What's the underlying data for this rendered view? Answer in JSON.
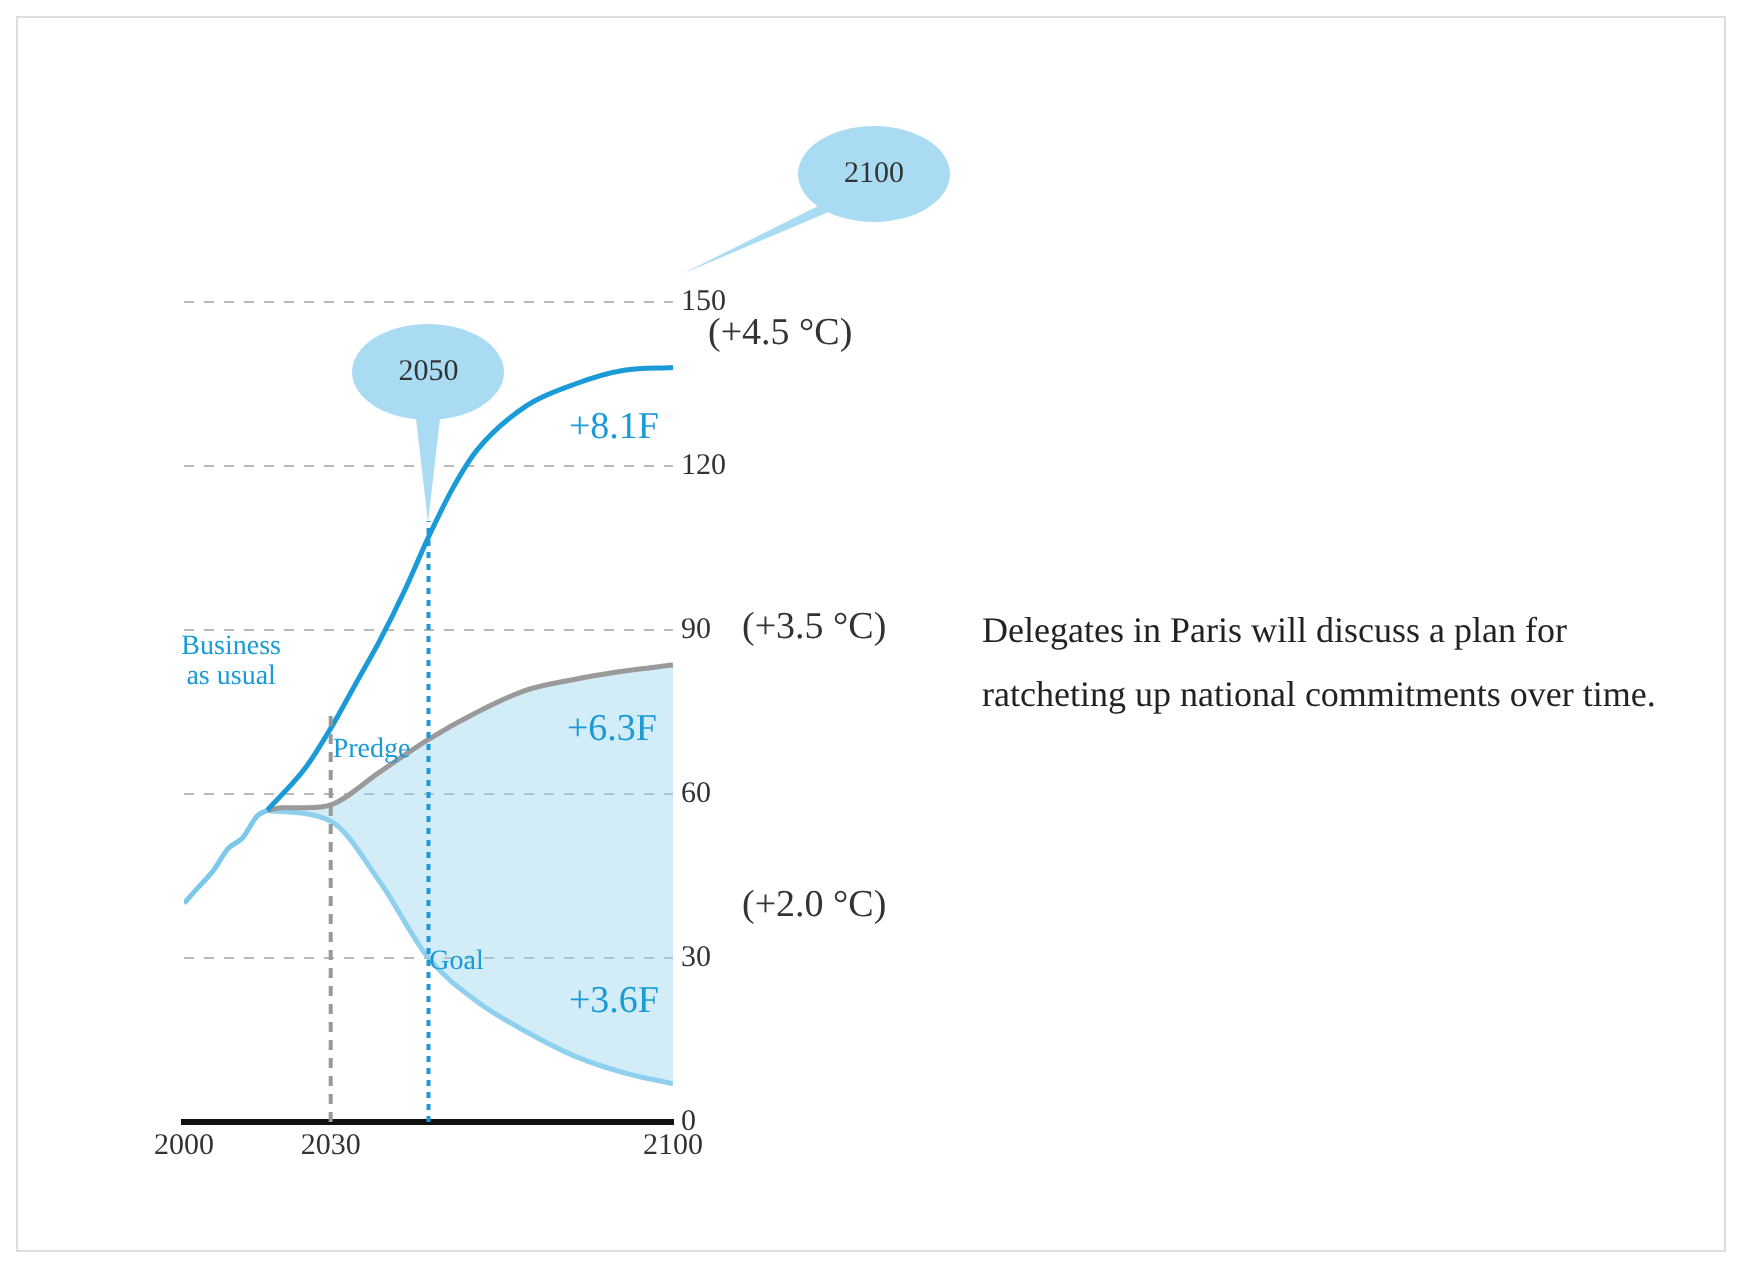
{
  "chart_data": {
    "type": "line",
    "xlim": [
      2000,
      2100
    ],
    "xticks": [
      2000,
      2030,
      2100
    ],
    "ylim": [
      0,
      150
    ],
    "yticks": [
      0,
      30,
      60,
      90,
      120,
      150
    ],
    "grid": "y",
    "legend": false,
    "marker": "none",
    "series": [
      {
        "color": "#7cc8ec",
        "x": [
          2000,
          2003,
          2006,
          2009,
          2012,
          2015,
          2017
        ],
        "values": [
          40,
          43,
          46,
          50,
          52,
          56,
          57
        ]
      },
      {
        "name": "Business as usual",
        "color": "#1a9ad6",
        "x": [
          2017,
          2025,
          2030,
          2035,
          2040,
          2045,
          2050,
          2055,
          2060,
          2070,
          2080,
          2090,
          2100
        ],
        "values": [
          57,
          65,
          72,
          80,
          88,
          97,
          107,
          116,
          123,
          131,
          135,
          137.5,
          138
        ]
      },
      {
        "name": "Predge",
        "color": "#9a9a9a",
        "x": [
          2017,
          2020,
          2025,
          2030,
          2040,
          2050,
          2060,
          2070,
          2080,
          2090,
          2100
        ],
        "values": [
          57,
          57.5,
          57.5,
          58,
          64,
          70,
          75,
          79,
          81,
          82.5,
          83.6
        ]
      },
      {
        "name": "Goal",
        "color": "#8fd0ee",
        "x": [
          2017,
          2030,
          2040,
          2050,
          2060,
          2070,
          2080,
          2090,
          2100
        ],
        "values": [
          57,
          55,
          44,
          30,
          22,
          16.5,
          12,
          9,
          7
        ],
        "lower": [
          57,
          55,
          44,
          30,
          22,
          16.5,
          12,
          9,
          7
        ],
        "upper": [
          57,
          58,
          64,
          70,
          75,
          79,
          81,
          82.5,
          83.6
        ]
      }
    ],
    "ref_lines": [
      {
        "axis": "x",
        "value": 2030,
        "color": "#999999",
        "line_style": "dashed"
      },
      {
        "axis": "x",
        "value": 2050,
        "label": "2050",
        "color": "#1a9ad6",
        "line_style": "dotted"
      }
    ],
    "annotations": [
      "2100",
      "(+4.5 °C)",
      "(+3.5 °C)",
      "(+2.0 °C)",
      "+8.1F",
      "+6.3F",
      "+3.6F",
      "Delegates in Paris will discuss a plan for ratcheting up national commitments over time."
    ]
  }
}
